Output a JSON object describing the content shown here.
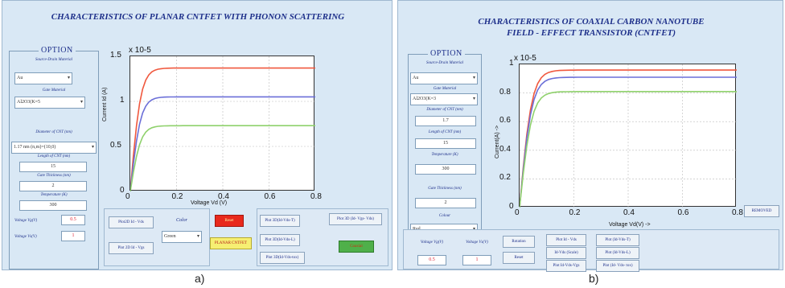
{
  "panel_a": {
    "title": "CHARACTERISTICS OF PLANAR CNTFET WITH PHONON SCATTERING",
    "option_legend": "OPTION",
    "source_drain_label": "Source-Drain Material",
    "source_drain_value": "Au",
    "gate_material_label": "Gate Material",
    "gate_material_value": "Al2O3(K=5",
    "diameter_label": "Diameter of CNT (nm)",
    "diameter_value": "1.17 nm (n,m)=(10,0)",
    "length_label": "Length of CNT (nm)",
    "length_value": "15",
    "gate_thickness_label": "Gate Thickness (nm)",
    "gate_thickness_value": "2",
    "temperature_label": "Temperature (K)",
    "temperature_value": "300",
    "vg_label": "Voltage Vg(V)",
    "vg_value": "0.5",
    "vs_label": "Voltage Vs(V)",
    "vs_value": "1",
    "btn_plot2d_id_vds": "Plot2D Id - Vds",
    "btn_plot2d_id_vgs": "Plot 2D Id - Vgs",
    "color_label": "Color",
    "color_value": "Green",
    "btn_reset": "Reset",
    "btn_planar": "PLANAR CNTFET",
    "btn_plot3d_1": "Plot 3D(Id-Vds-T)",
    "btn_plot3d_2": "Plot 3D(Id-Vds-L)",
    "btn_plot3d_3": "Plot 3D(Id-Vds-tox)",
    "btn_plot3d_4": "Plot 3D (Id- Vgs- Vds)",
    "btn_green": "Coaxial",
    "caption": "a)"
  },
  "panel_b": {
    "title_line1": "CHARACTERISTICS OF COAXIAL CARBON NANOTUBE",
    "title_line2": "FIELD - EFFECT TRANSISTOR (CNTFET)",
    "option_legend": "OPTION",
    "source_drain_label": "Source-Drain Material",
    "source_drain_value": "Au",
    "gate_material_label": "Gate Material",
    "gate_material_value": "Al2O3(K=3",
    "diameter_label": "Diameter of CNT (nm)",
    "diameter_value": "1.7",
    "length_label": "Length of CNT (nm)",
    "length_value": "15",
    "temperature_label": "Temperature (K)",
    "temperature_value": "300",
    "gate_thickness_label": "Gate Thickness (nm)",
    "gate_thickness_value": "2",
    "color_label": "Colour",
    "color_value": "Red",
    "vg_label": "Voltage Vg(V)",
    "vg_value": "0.5",
    "vs_label": "Voltage Vs(V)",
    "vs_value": "1",
    "btn_rotation": "Rotation",
    "btn_reset": "Reset",
    "btn_plot_id_vds": "Plot Id - Vds",
    "btn_id_vds_scale": "Id-Vds (Scale)",
    "btn_plot_id_vds_vgs": "Plot Id-Vds-Vgs",
    "btn_plot_id_vds_t": "Plot (Id-Vds-T)",
    "btn_plot_id_vds_l": "Plot (Id-Vds-L)",
    "btn_plot_id_vds_tox": "Plot (Id- Vds- tox)",
    "btn_remove": "REMOVED",
    "caption": "b)"
  },
  "chart_data": [
    {
      "type": "line",
      "title": "",
      "xlabel": "Voltage Vd (V)",
      "ylabel": "Current Id (A)",
      "y_multiplier": "x 10-5",
      "xlim": [
        0,
        0.8
      ],
      "ylim": [
        0,
        1.5
      ],
      "xticks": [
        "0",
        "0.2",
        "0.4",
        "0.6",
        "0.8"
      ],
      "yticks": [
        "0",
        "0.5",
        "1",
        "1.5"
      ],
      "grid": true,
      "series": [
        {
          "color": "#f0583e",
          "saturation": 1.37
        },
        {
          "color": "#6b6fd8",
          "saturation": 1.05
        },
        {
          "color": "#8fd16c",
          "saturation": 0.73
        }
      ]
    },
    {
      "type": "line",
      "title": "",
      "xlabel": "Voltage Vd(V)  ->",
      "ylabel": "Current(A) ->",
      "y_multiplier": "x 10-5",
      "xlim": [
        0,
        0.8
      ],
      "ylim": [
        0,
        1
      ],
      "xticks": [
        "0",
        "0.2",
        "0.4",
        "0.6",
        "0.8"
      ],
      "yticks": [
        "0",
        "0.2",
        "0.4",
        "0.6",
        "0.8",
        "1"
      ],
      "grid": true,
      "series": [
        {
          "color": "#f0583e",
          "saturation": 0.96
        },
        {
          "color": "#6b6fd8",
          "saturation": 0.91
        },
        {
          "color": "#8fd16c",
          "saturation": 0.81
        }
      ]
    }
  ]
}
